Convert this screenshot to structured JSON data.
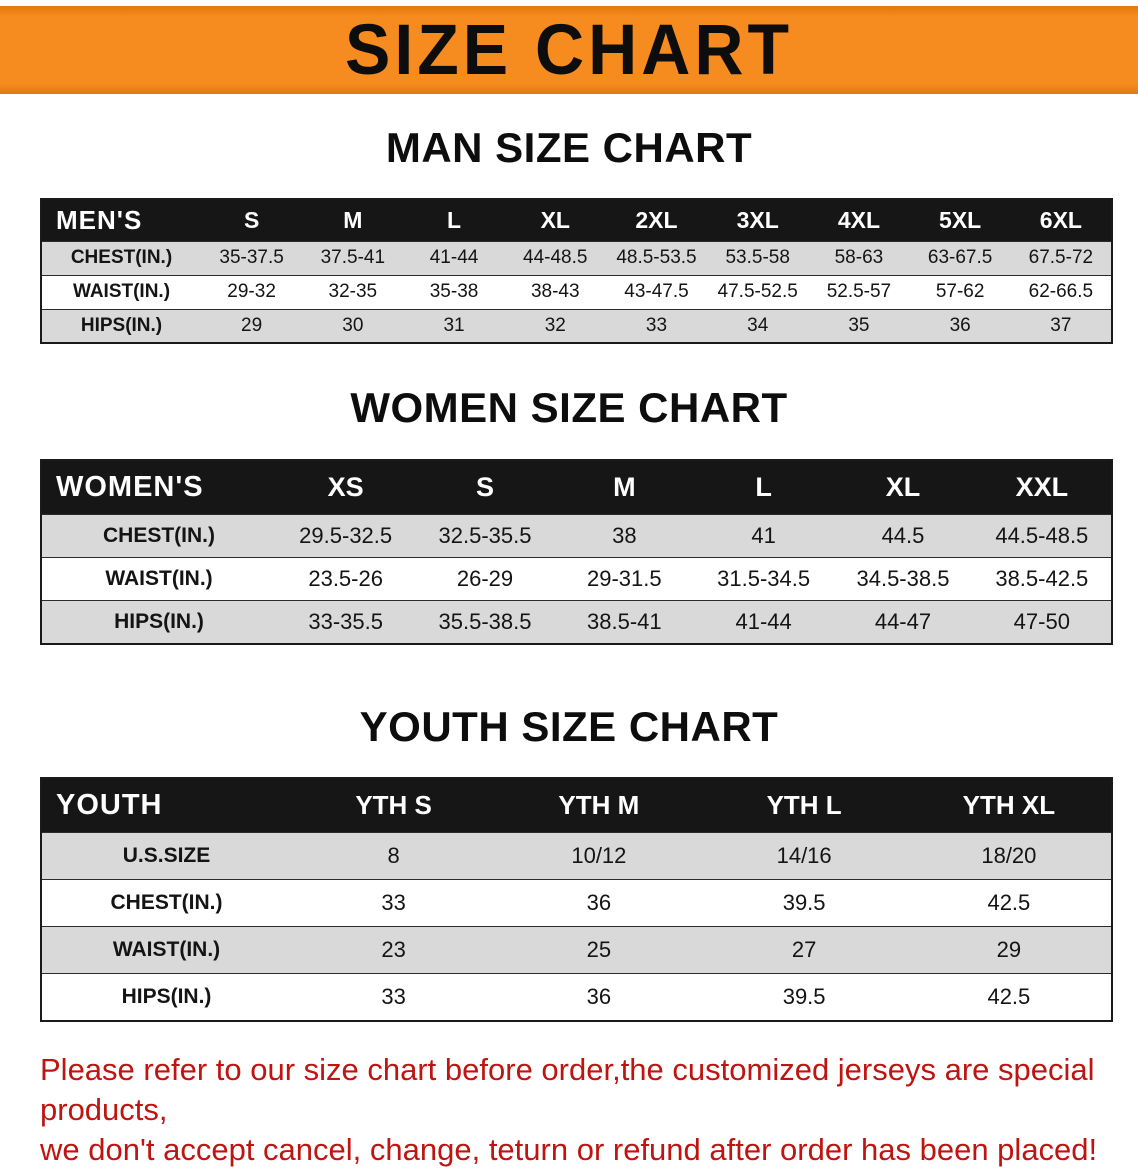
{
  "banner": {
    "title": "SIZE CHART"
  },
  "colors": {
    "banner_bg": "#f68b1f",
    "table_header_bg": "#161616",
    "shaded_row_bg": "#d9d9d9",
    "footer_text": "#be1510"
  },
  "sections": {
    "men": {
      "heading": "MAN SIZE CHART",
      "table": {
        "header": [
          "MEN'S",
          "S",
          "M",
          "L",
          "XL",
          "2XL",
          "3XL",
          "4XL",
          "5XL",
          "6XL"
        ],
        "rows": [
          [
            "CHEST(IN.)",
            "35-37.5",
            "37.5-41",
            "41-44",
            "44-48.5",
            "48.5-53.5",
            "53.5-58",
            "58-63",
            "63-67.5",
            "67.5-72"
          ],
          [
            "WAIST(IN.)",
            "29-32",
            "32-35",
            "35-38",
            "38-43",
            "43-47.5",
            "47.5-52.5",
            "52.5-57",
            "57-62",
            "62-66.5"
          ],
          [
            "HIPS(IN.)",
            "29",
            "30",
            "31",
            "32",
            "33",
            "34",
            "35",
            "36",
            "37"
          ]
        ]
      }
    },
    "women": {
      "heading": "WOMEN SIZE CHART",
      "table": {
        "header": [
          "WOMEN'S",
          "XS",
          "S",
          "M",
          "L",
          "XL",
          "XXL"
        ],
        "rows": [
          [
            "CHEST(IN.)",
            "29.5-32.5",
            "32.5-35.5",
            "38",
            "41",
            "44.5",
            "44.5-48.5"
          ],
          [
            "WAIST(IN.)",
            "23.5-26",
            "26-29",
            "29-31.5",
            "31.5-34.5",
            "34.5-38.5",
            "38.5-42.5"
          ],
          [
            "HIPS(IN.)",
            "33-35.5",
            "35.5-38.5",
            "38.5-41",
            "41-44",
            "44-47",
            "47-50"
          ]
        ]
      }
    },
    "youth": {
      "heading": "YOUTH SIZE CHART",
      "table": {
        "header": [
          "YOUTH",
          "YTH S",
          "YTH M",
          "YTH L",
          "YTH XL"
        ],
        "rows": [
          [
            "U.S.SIZE",
            "8",
            "10/12",
            "14/16",
            "18/20"
          ],
          [
            "CHEST(IN.)",
            "33",
            "36",
            "39.5",
            "42.5"
          ],
          [
            "WAIST(IN.)",
            "23",
            "25",
            "27",
            "29"
          ],
          [
            "HIPS(IN.)",
            "33",
            "36",
            "39.5",
            "42.5"
          ]
        ]
      }
    }
  },
  "footer": {
    "lines": [
      "Please refer to our size chart before order,the customized jerseys are special products,",
      "we don't accept cancel, change, teturn or refund after order has been placed!"
    ]
  }
}
